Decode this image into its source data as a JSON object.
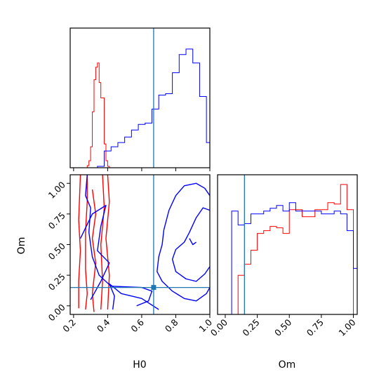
{
  "chart_data": {
    "type": "corner",
    "colors": {
      "run_a": "#0000ff",
      "run_b": "#ff0000",
      "truth": "#1f77b4",
      "frame": "#000000"
    },
    "truth": {
      "H0": 0.67,
      "Om": 0.15
    },
    "panels": {
      "h0_hist": {
        "type": "histogram",
        "xlim": [
          0.18,
          1.0
        ],
        "ylim": [
          0,
          1
        ],
        "series": [
          {
            "color_key": "run_b",
            "step_x": [
              0.18,
              0.27,
              0.28,
              0.29,
              0.3,
              0.31,
              0.32,
              0.33,
              0.34,
              0.35,
              0.36,
              0.37,
              0.38,
              0.39,
              0.4,
              0.41,
              1.0
            ],
            "step_y": [
              0,
              0,
              0.015,
              0.05,
              0.15,
              0.4,
              0.63,
              0.72,
              0.75,
              0.61,
              0.5,
              0.5,
              0.17,
              0.05,
              0.01,
              0,
              0
            ]
          },
          {
            "color_key": "run_a",
            "step_x": [
              0.18,
              0.32,
              0.34,
              0.38,
              0.42,
              0.46,
              0.5,
              0.54,
              0.58,
              0.62,
              0.66,
              0.7,
              0.74,
              0.78,
              0.82,
              0.86,
              0.9,
              0.94,
              0.98,
              1.0
            ],
            "step_y": [
              0,
              0,
              0.01,
              0.12,
              0.15,
              0.18,
              0.22,
              0.27,
              0.31,
              0.32,
              0.42,
              0.52,
              0.53,
              0.68,
              0.81,
              0.85,
              0.75,
              0.51,
              0.18,
              0.18
            ]
          }
        ]
      },
      "om_hist": {
        "type": "histogram",
        "xlim": [
          -0.06,
          1.03
        ],
        "ylim": [
          0,
          1
        ],
        "series": [
          {
            "color_key": "run_b",
            "step_x": [
              -0.06,
              0.05,
              0.1,
              0.15,
              0.2,
              0.25,
              0.3,
              0.35,
              0.4,
              0.45,
              0.5,
              0.55,
              0.6,
              0.65,
              0.7,
              0.75,
              0.8,
              0.85,
              0.9,
              0.95,
              1.0,
              1.03
            ],
            "step_y": [
              0,
              0,
              0.28,
              0.36,
              0.46,
              0.58,
              0.6,
              0.63,
              0.62,
              0.58,
              0.75,
              0.75,
              0.7,
              0.7,
              0.75,
              0.75,
              0.8,
              0.79,
              0.93,
              0.75,
              0,
              0
            ]
          },
          {
            "color_key": "run_a",
            "step_x": [
              -0.06,
              0,
              0.05,
              0.1,
              0.15,
              0.2,
              0.25,
              0.3,
              0.35,
              0.4,
              0.45,
              0.5,
              0.55,
              0.6,
              0.65,
              0.7,
              0.75,
              0.8,
              0.85,
              0.9,
              0.95,
              1.0,
              1.03
            ],
            "step_y": [
              0,
              0,
              0.74,
              0.64,
              0.65,
              0.72,
              0.72,
              0.74,
              0.76,
              0.78,
              0.74,
              0.8,
              0.74,
              0.74,
              0.74,
              0.74,
              0.72,
              0.72,
              0.74,
              0.72,
              0.6,
              0.33,
              0.33
            ]
          }
        ]
      },
      "joint": {
        "type": "contour",
        "xlim": [
          0.18,
          1.0
        ],
        "ylim": [
          -0.07,
          1.07
        ],
        "contours": [
          {
            "color_key": "run_b",
            "points": [
              [
                0.27,
                -0.03
              ],
              [
                0.28,
                0.1
              ],
              [
                0.27,
                0.3
              ],
              [
                0.27,
                0.6
              ],
              [
                0.28,
                0.85
              ],
              [
                0.28,
                1.07
              ]
            ]
          },
          {
            "color_key": "run_b",
            "points": [
              [
                0.36,
                -0.03
              ],
              [
                0.37,
                0.2
              ],
              [
                0.36,
                0.5
              ],
              [
                0.38,
                0.8
              ],
              [
                0.37,
                1.07
              ]
            ]
          },
          {
            "color_key": "run_b",
            "points": [
              [
                0.23,
                -0.02
              ],
              [
                0.23,
                0.2
              ],
              [
                0.24,
                0.45
              ],
              [
                0.23,
                0.7
              ],
              [
                0.24,
                1.07
              ]
            ]
          },
          {
            "color_key": "run_b",
            "points": [
              [
                0.4,
                -0.03
              ],
              [
                0.41,
                0.25
              ],
              [
                0.39,
                0.55
              ],
              [
                0.41,
                0.85
              ],
              [
                0.4,
                1.07
              ]
            ]
          },
          {
            "color_key": "run_b",
            "points": [
              [
                0.31,
                0.95
              ],
              [
                0.33,
                0.75
              ],
              [
                0.31,
                0.55
              ],
              [
                0.33,
                0.35
              ],
              [
                0.31,
                0.1
              ],
              [
                0.32,
                -0.05
              ]
            ]
          },
          {
            "color_key": "run_a",
            "points": [
              [
                0.28,
                1.07
              ],
              [
                0.27,
                0.9
              ],
              [
                0.3,
                0.8
              ],
              [
                0.29,
                0.6
              ],
              [
                0.31,
                0.4
              ],
              [
                0.35,
                0.25
              ],
              [
                0.42,
                0.16
              ],
              [
                0.6,
                0.15
              ],
              [
                0.66,
                0.12
              ],
              [
                0.64,
                0.04
              ],
              [
                0.57,
                0.0
              ]
            ]
          },
          {
            "color_key": "run_a",
            "points": [
              [
                0.24,
                0.55
              ],
              [
                0.31,
                0.75
              ],
              [
                0.39,
                0.82
              ],
              [
                0.36,
                0.65
              ],
              [
                0.34,
                0.45
              ],
              [
                0.41,
                0.35
              ],
              [
                0.36,
                0.2
              ],
              [
                0.3,
                0.05
              ]
            ]
          },
          {
            "color_key": "run_a",
            "points": [
              [
                0.43,
                -0.03
              ],
              [
                0.44,
                0.08
              ],
              [
                0.41,
                0.18
              ],
              [
                0.48,
                0.1
              ],
              [
                0.6,
                0.06
              ],
              [
                0.7,
                -0.03
              ]
            ]
          },
          {
            "color_key": "run_a",
            "points": [
              [
                1.0,
                0.9
              ],
              [
                0.97,
                0.96
              ],
              [
                0.92,
                1.0
              ],
              [
                0.85,
                0.98
              ],
              [
                0.8,
                0.9
              ],
              [
                0.76,
                0.78
              ],
              [
                0.73,
                0.62
              ],
              [
                0.72,
                0.5
              ],
              [
                0.7,
                0.4
              ],
              [
                0.69,
                0.28
              ],
              [
                0.72,
                0.2
              ],
              [
                0.78,
                0.12
              ],
              [
                0.85,
                0.06
              ],
              [
                0.92,
                0.04
              ],
              [
                0.98,
                0.1
              ],
              [
                1.0,
                0.15
              ]
            ]
          },
          {
            "color_key": "run_a",
            "points": [
              [
                1.0,
                0.78
              ],
              [
                0.96,
                0.8
              ],
              [
                0.92,
                0.72
              ],
              [
                0.88,
                0.6
              ],
              [
                0.85,
                0.52
              ],
              [
                0.8,
                0.46
              ],
              [
                0.78,
                0.38
              ],
              [
                0.8,
                0.28
              ],
              [
                0.86,
                0.22
              ],
              [
                0.92,
                0.2
              ],
              [
                0.97,
                0.26
              ],
              [
                1.0,
                0.32
              ]
            ]
          },
          {
            "color_key": "run_a",
            "points": [
              [
                0.88,
                0.55
              ],
              [
                0.9,
                0.5
              ],
              [
                0.92,
                0.52
              ]
            ]
          }
        ]
      }
    },
    "axes": {
      "h0": {
        "label": "H0",
        "ticks": [
          0.2,
          0.4,
          0.6,
          0.8,
          1.0
        ],
        "tick_labels": [
          "0.2",
          "0.4",
          "0.6",
          "0.8",
          "1.0"
        ]
      },
      "om_y": {
        "label": "Om",
        "ticks": [
          0.0,
          0.25,
          0.5,
          0.75,
          1.0
        ],
        "tick_labels": [
          "0.00",
          "0.25",
          "0.50",
          "0.75",
          "1.00"
        ]
      },
      "om_x": {
        "label": "Om",
        "ticks": [
          0.0,
          0.25,
          0.5,
          0.75,
          1.0
        ],
        "tick_labels": [
          "0.00",
          "0.25",
          "0.50",
          "0.75",
          "1.00"
        ]
      }
    }
  }
}
